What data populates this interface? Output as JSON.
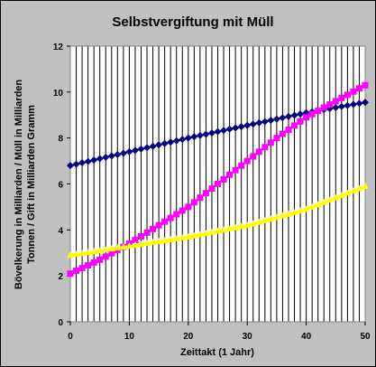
{
  "chart_data": {
    "type": "line",
    "title": "Selbstvergiftung mit Müll",
    "xlabel": "Zeittakt (1 Jahr)",
    "ylabel_lines": [
      "Bövelkerung in Milliarden / Müll in Milliarden",
      "Tonnen / Gift in Milliarden Gramm"
    ],
    "xlim": [
      0,
      50
    ],
    "ylim": [
      0,
      12
    ],
    "x_ticks": [
      0,
      10,
      20,
      30,
      40,
      50
    ],
    "y_ticks": [
      0,
      2,
      4,
      6,
      8,
      10,
      12
    ],
    "grid": "vertical",
    "legend": "none",
    "background_color": "#c0c0c0",
    "plot_background": "#ffffff",
    "series": [
      {
        "color": "#000080",
        "marker": "diamond",
        "x": [
          0,
          10,
          20,
          30,
          40,
          50
        ],
        "y": [
          6.8,
          7.4,
          8.0,
          8.55,
          9.1,
          9.55
        ]
      },
      {
        "color": "#ff00ff",
        "marker": "square",
        "x": [
          0,
          5,
          10,
          15,
          20,
          25,
          30,
          35,
          40,
          45,
          50
        ],
        "y": [
          2.1,
          2.7,
          3.4,
          4.2,
          5.0,
          6.0,
          7.0,
          8.0,
          8.9,
          9.6,
          10.3
        ]
      },
      {
        "color": "#ffff00",
        "marker": "triangle",
        "x": [
          0,
          10,
          20,
          30,
          40,
          50
        ],
        "y": [
          2.9,
          3.3,
          3.7,
          4.2,
          4.9,
          5.9
        ]
      }
    ]
  }
}
